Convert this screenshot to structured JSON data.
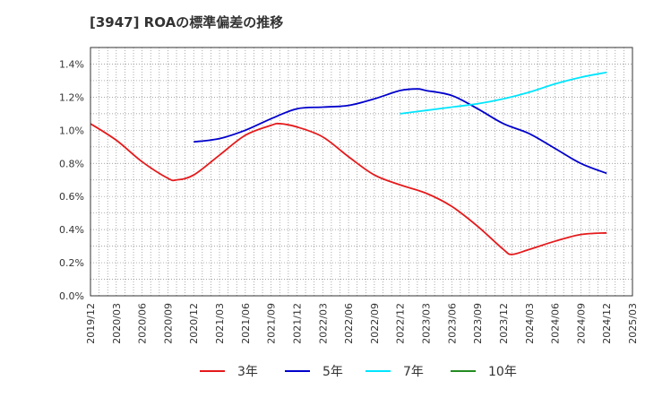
{
  "chart_data": {
    "type": "line",
    "title": "[3947]  ROAの標準偏差の推移",
    "xlabel": "",
    "ylabel": "",
    "ylim": [
      0,
      1.5
    ],
    "y_ticks": [
      0,
      0.2,
      0.4,
      0.6,
      0.8,
      1.0,
      1.2,
      1.4
    ],
    "y_tick_labels": [
      "0.0%",
      "0.2%",
      "0.4%",
      "0.6%",
      "0.8%",
      "1.0%",
      "1.2%",
      "1.4%"
    ],
    "x_tick_labels": [
      "2019/12",
      "2020/03",
      "2020/06",
      "2020/09",
      "2020/12",
      "2021/03",
      "2021/06",
      "2021/09",
      "2021/12",
      "2022/03",
      "2022/06",
      "2022/09",
      "2022/12",
      "2023/03",
      "2023/06",
      "2023/09",
      "2023/12",
      "2024/03",
      "2024/06",
      "2024/09",
      "2024/12",
      "2025/03"
    ],
    "grid": true,
    "legend_position": "bottom",
    "series": [
      {
        "name": "3年",
        "color": "#e41a1c",
        "x": [
          "2019/12",
          "2020/03",
          "2020/06",
          "2020/09",
          "2020/10",
          "2020/12",
          "2021/03",
          "2021/06",
          "2021/09",
          "2021/10",
          "2021/12",
          "2022/03",
          "2022/06",
          "2022/09",
          "2022/12",
          "2023/03",
          "2023/06",
          "2023/09",
          "2023/12",
          "2024/01",
          "2024/03",
          "2024/06",
          "2024/09",
          "2024/12"
        ],
        "values": [
          1.04,
          0.94,
          0.81,
          0.71,
          0.7,
          0.73,
          0.85,
          0.97,
          1.03,
          1.04,
          1.02,
          0.96,
          0.84,
          0.73,
          0.67,
          0.62,
          0.54,
          0.42,
          0.28,
          0.25,
          0.28,
          0.33,
          0.37,
          0.38
        ]
      },
      {
        "name": "5年",
        "color": "#0000cc",
        "x": [
          "2020/12",
          "2021/03",
          "2021/06",
          "2021/09",
          "2021/12",
          "2022/03",
          "2022/06",
          "2022/09",
          "2022/12",
          "2023/02",
          "2023/03",
          "2023/06",
          "2023/09",
          "2023/12",
          "2024/03",
          "2024/06",
          "2024/09",
          "2024/12"
        ],
        "values": [
          0.93,
          0.95,
          1.0,
          1.07,
          1.13,
          1.14,
          1.15,
          1.19,
          1.24,
          1.25,
          1.24,
          1.21,
          1.13,
          1.04,
          0.98,
          0.89,
          0.8,
          0.74
        ]
      },
      {
        "name": "7年",
        "color": "#00e5ff",
        "x": [
          "2022/12",
          "2023/03",
          "2023/06",
          "2023/09",
          "2023/12",
          "2024/03",
          "2024/06",
          "2024/09",
          "2024/12"
        ],
        "values": [
          1.1,
          1.12,
          1.14,
          1.16,
          1.19,
          1.23,
          1.28,
          1.32,
          1.35
        ]
      },
      {
        "name": "10年",
        "color": "#228b22",
        "x": [],
        "values": []
      }
    ]
  }
}
